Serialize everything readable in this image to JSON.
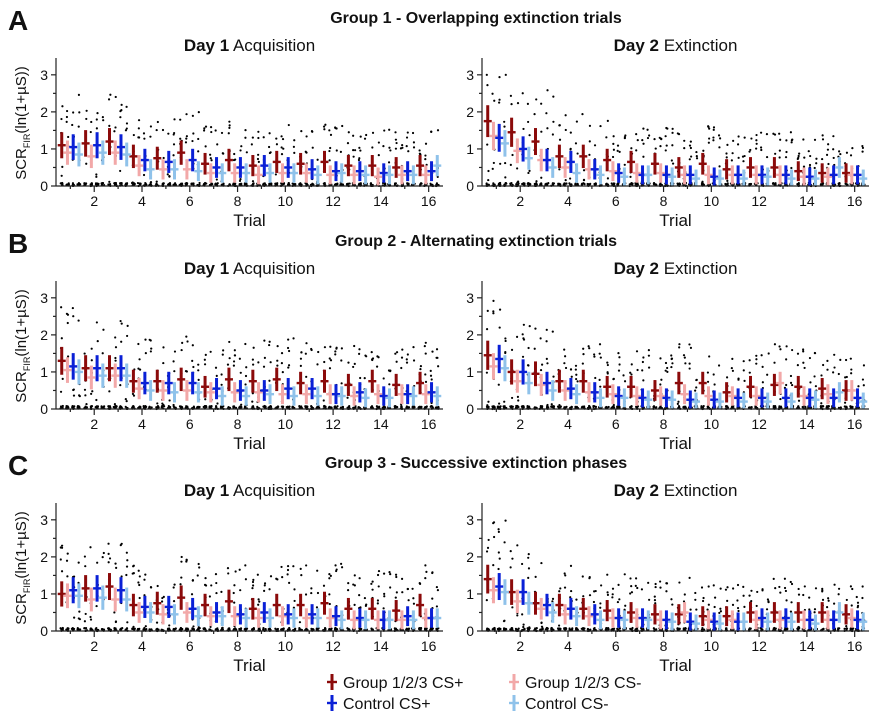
{
  "legend": [
    {
      "label": "Group 1/2/3 CS+",
      "color": "#8b0a0a"
    },
    {
      "label": "Group 1/2/3 CS-",
      "color": "#f2a8a8"
    },
    {
      "label": "Control CS+",
      "color": "#0a20d6"
    },
    {
      "label": "Control CS-",
      "color": "#8fc2ea"
    }
  ],
  "chart_data": [
    {
      "type": "scatter",
      "panel_letter": "A",
      "group_title": "Group 1 - Overlapping extinction trials",
      "day_bold": "Day 1",
      "phase": "Acquisition",
      "xlabel": "Trial",
      "ylabel_main": "SCR",
      "ylabel_sub": "FIR",
      "ylabel_tail": "(ln(1+µS))",
      "xticks": [
        2,
        4,
        6,
        8,
        10,
        12,
        14,
        16
      ],
      "yticks": [
        0,
        1,
        2,
        3
      ],
      "xlim": [
        0.4,
        16.6
      ],
      "ylim": [
        0,
        3.4
      ],
      "x": [
        1,
        2,
        3,
        4,
        5,
        6,
        7,
        8,
        9,
        10,
        11,
        12,
        13,
        14,
        15,
        16
      ],
      "series": [
        {
          "name": "Group 1/2/3 CS+",
          "values": [
            1.1,
            1.15,
            1.2,
            0.8,
            0.75,
            0.9,
            0.6,
            0.7,
            0.55,
            0.65,
            0.6,
            0.65,
            0.55,
            0.55,
            0.5,
            0.55
          ]
        },
        {
          "name": "Group 1/2/3 CS-",
          "values": [
            0.9,
            0.8,
            0.9,
            0.55,
            0.45,
            0.45,
            0.35,
            0.35,
            0.3,
            0.35,
            0.35,
            0.3,
            0.3,
            0.25,
            0.3,
            0.3
          ]
        },
        {
          "name": "Control CS+",
          "values": [
            1.05,
            1.1,
            1.05,
            0.7,
            0.65,
            0.7,
            0.5,
            0.5,
            0.55,
            0.5,
            0.45,
            0.4,
            0.4,
            0.35,
            0.4,
            0.4
          ]
        },
        {
          "name": "Control CS-",
          "values": [
            0.85,
            0.9,
            0.85,
            0.45,
            0.45,
            0.4,
            0.35,
            0.35,
            0.35,
            0.35,
            0.3,
            0.35,
            0.3,
            0.3,
            0.3,
            0.55
          ]
        }
      ]
    },
    {
      "type": "scatter",
      "panel_letter": "",
      "group_title": "",
      "day_bold": "Day 2",
      "phase": "Extinction",
      "xlabel": "Trial",
      "ylabel_main": "",
      "ylabel_sub": "",
      "ylabel_tail": "",
      "xticks": [
        2,
        4,
        6,
        8,
        10,
        12,
        14,
        16
      ],
      "yticks": [
        0,
        1,
        2,
        3
      ],
      "xlim": [
        0.4,
        16.6
      ],
      "ylim": [
        0,
        3.4
      ],
      "x": [
        1,
        2,
        3,
        4,
        5,
        6,
        7,
        8,
        9,
        10,
        11,
        12,
        13,
        14,
        15,
        16
      ],
      "series": [
        {
          "name": "Group 1/2/3 CS+",
          "values": [
            1.75,
            1.45,
            1.2,
            0.8,
            0.8,
            0.7,
            0.65,
            0.6,
            0.5,
            0.6,
            0.45,
            0.5,
            0.5,
            0.4,
            0.35,
            0.35
          ]
        },
        {
          "name": "Group 1/2/3 CS-",
          "values": [
            1.35,
            0.95,
            0.7,
            0.5,
            0.45,
            0.4,
            0.35,
            0.35,
            0.3,
            0.3,
            0.3,
            0.3,
            0.3,
            0.25,
            0.25,
            0.3
          ]
        },
        {
          "name": "Control CS+",
          "values": [
            1.3,
            1.0,
            0.7,
            0.65,
            0.45,
            0.35,
            0.3,
            0.3,
            0.3,
            0.25,
            0.3,
            0.3,
            0.3,
            0.25,
            0.3,
            0.3
          ]
        },
        {
          "name": "Control CS-",
          "values": [
            1.15,
            0.75,
            0.5,
            0.35,
            0.3,
            0.25,
            0.3,
            0.25,
            0.2,
            0.2,
            0.2,
            0.25,
            0.2,
            0.2,
            0.5,
            0.2
          ]
        }
      ]
    },
    {
      "type": "scatter",
      "panel_letter": "B",
      "group_title": "Group 2 - Alternating extinction trials",
      "day_bold": "Day 1",
      "phase": "Acquisition",
      "xlabel": "Trial",
      "ylabel_main": "SCR",
      "ylabel_sub": "FIR",
      "ylabel_tail": "(ln(1+µS))",
      "xticks": [
        2,
        4,
        6,
        8,
        10,
        12,
        14,
        16
      ],
      "yticks": [
        0,
        1,
        2,
        3
      ],
      "xlim": [
        0.4,
        16.6
      ],
      "ylim": [
        0,
        3.4
      ],
      "x": [
        1,
        2,
        3,
        4,
        5,
        6,
        7,
        8,
        9,
        10,
        11,
        12,
        13,
        14,
        15,
        16
      ],
      "series": [
        {
          "name": "Group 1/2/3 CS+",
          "values": [
            1.3,
            1.1,
            1.1,
            0.75,
            0.75,
            0.8,
            0.6,
            0.8,
            0.75,
            0.8,
            0.7,
            0.75,
            0.65,
            0.75,
            0.65,
            0.7
          ]
        },
        {
          "name": "Group 1/2/3 CS-",
          "values": [
            1.05,
            0.85,
            0.9,
            0.55,
            0.5,
            0.5,
            0.45,
            0.45,
            0.45,
            0.4,
            0.4,
            0.4,
            0.35,
            0.4,
            0.4,
            0.4
          ]
        },
        {
          "name": "Control CS+",
          "values": [
            1.15,
            1.1,
            1.1,
            0.7,
            0.7,
            0.7,
            0.55,
            0.5,
            0.5,
            0.55,
            0.55,
            0.4,
            0.45,
            0.35,
            0.4,
            0.45
          ]
        },
        {
          "name": "Control CS-",
          "values": [
            1.0,
            0.9,
            0.9,
            0.5,
            0.45,
            0.45,
            0.35,
            0.35,
            0.4,
            0.35,
            0.35,
            0.35,
            0.3,
            0.3,
            0.35,
            0.35
          ]
        }
      ]
    },
    {
      "type": "scatter",
      "panel_letter": "",
      "group_title": "",
      "day_bold": "Day 2",
      "phase": "Extinction",
      "xlabel": "Trial",
      "ylabel_main": "",
      "ylabel_sub": "",
      "ylabel_tail": "",
      "xticks": [
        2,
        4,
        6,
        8,
        10,
        12,
        14,
        16
      ],
      "yticks": [
        0,
        1,
        2,
        3
      ],
      "xlim": [
        0.4,
        16.6
      ],
      "ylim": [
        0,
        3.4
      ],
      "x": [
        1,
        2,
        3,
        4,
        5,
        6,
        7,
        8,
        9,
        10,
        11,
        12,
        13,
        14,
        15,
        16
      ],
      "series": [
        {
          "name": "Group 1/2/3 CS+",
          "values": [
            1.45,
            1.0,
            0.95,
            0.75,
            0.75,
            0.6,
            0.6,
            0.5,
            0.7,
            0.7,
            0.45,
            0.6,
            0.65,
            0.6,
            0.55,
            0.5
          ]
        },
        {
          "name": "Group 1/2/3 CS-",
          "values": [
            1.15,
            0.75,
            0.65,
            0.5,
            0.45,
            0.4,
            0.35,
            0.35,
            0.4,
            0.35,
            0.35,
            0.35,
            0.7,
            0.35,
            0.4,
            0.5
          ]
        },
        {
          "name": "Control CS+",
          "values": [
            1.35,
            1.0,
            0.7,
            0.55,
            0.45,
            0.35,
            0.3,
            0.3,
            0.25,
            0.25,
            0.3,
            0.3,
            0.3,
            0.3,
            0.3,
            0.3
          ]
        },
        {
          "name": "Control CS-",
          "values": [
            1.1,
            0.7,
            0.5,
            0.4,
            0.3,
            0.3,
            0.25,
            0.25,
            0.2,
            0.2,
            0.2,
            0.2,
            0.2,
            0.25,
            0.45,
            0.2
          ]
        }
      ]
    },
    {
      "type": "scatter",
      "panel_letter": "C",
      "group_title": "Group 3 - Successive extinction phases",
      "day_bold": "Day 1",
      "phase": "Acquisition",
      "xlabel": "Trial",
      "ylabel_main": "SCR",
      "ylabel_sub": "FIR",
      "ylabel_tail": "(ln(1+µS))",
      "xticks": [
        2,
        4,
        6,
        8,
        10,
        12,
        14,
        16
      ],
      "yticks": [
        0,
        1,
        2,
        3
      ],
      "xlim": [
        0.4,
        16.6
      ],
      "ylim": [
        0,
        3.4
      ],
      "x": [
        1,
        2,
        3,
        4,
        5,
        6,
        7,
        8,
        9,
        10,
        11,
        12,
        13,
        14,
        15,
        16
      ],
      "series": [
        {
          "name": "Group 1/2/3 CS+",
          "values": [
            1.0,
            1.15,
            1.2,
            0.7,
            0.75,
            0.9,
            0.7,
            0.8,
            0.6,
            0.7,
            0.7,
            0.75,
            0.6,
            0.6,
            0.55,
            0.7
          ]
        },
        {
          "name": "Group 1/2/3 CS-",
          "values": [
            0.95,
            0.85,
            0.85,
            0.5,
            0.45,
            0.5,
            0.4,
            0.4,
            0.35,
            0.4,
            0.35,
            0.35,
            0.3,
            0.3,
            0.3,
            0.35
          ]
        },
        {
          "name": "Control CS+",
          "values": [
            1.1,
            1.15,
            1.1,
            0.65,
            0.65,
            0.6,
            0.5,
            0.45,
            0.5,
            0.45,
            0.45,
            0.4,
            0.35,
            0.3,
            0.4,
            0.35
          ]
        },
        {
          "name": "Control CS-",
          "values": [
            0.95,
            0.9,
            0.85,
            0.5,
            0.45,
            0.4,
            0.4,
            0.35,
            0.35,
            0.35,
            0.35,
            0.3,
            0.3,
            0.3,
            0.3,
            0.35
          ]
        }
      ]
    },
    {
      "type": "scatter",
      "panel_letter": "",
      "group_title": "",
      "day_bold": "Day 2",
      "phase": "Extinction",
      "xlabel": "Trial",
      "ylabel_main": "",
      "ylabel_sub": "",
      "ylabel_tail": "",
      "xticks": [
        2,
        4,
        6,
        8,
        10,
        12,
        14,
        16
      ],
      "yticks": [
        0,
        1,
        2,
        3
      ],
      "xlim": [
        0.4,
        16.6
      ],
      "ylim": [
        0,
        3.4
      ],
      "x": [
        1,
        2,
        3,
        4,
        5,
        6,
        7,
        8,
        9,
        10,
        11,
        12,
        13,
        14,
        15,
        16
      ],
      "series": [
        {
          "name": "Group 1/2/3 CS+",
          "values": [
            1.4,
            1.05,
            0.75,
            0.7,
            0.6,
            0.55,
            0.5,
            0.45,
            0.45,
            0.4,
            0.4,
            0.5,
            0.5,
            0.5,
            0.5,
            0.45
          ]
        },
        {
          "name": "Group 1/2/3 CS-",
          "values": [
            1.1,
            0.8,
            0.6,
            0.45,
            0.4,
            0.35,
            0.35,
            0.3,
            0.5,
            0.3,
            0.3,
            0.3,
            0.3,
            0.3,
            0.3,
            0.35
          ]
        },
        {
          "name": "Control CS+",
          "values": [
            1.2,
            1.05,
            0.7,
            0.6,
            0.45,
            0.35,
            0.35,
            0.3,
            0.25,
            0.25,
            0.25,
            0.35,
            0.35,
            0.3,
            0.3,
            0.3
          ]
        },
        {
          "name": "Control CS-",
          "values": [
            1.05,
            0.75,
            0.5,
            0.4,
            0.3,
            0.3,
            0.3,
            0.25,
            0.2,
            0.2,
            0.25,
            0.25,
            0.25,
            0.2,
            0.5,
            0.25
          ]
        }
      ]
    }
  ]
}
